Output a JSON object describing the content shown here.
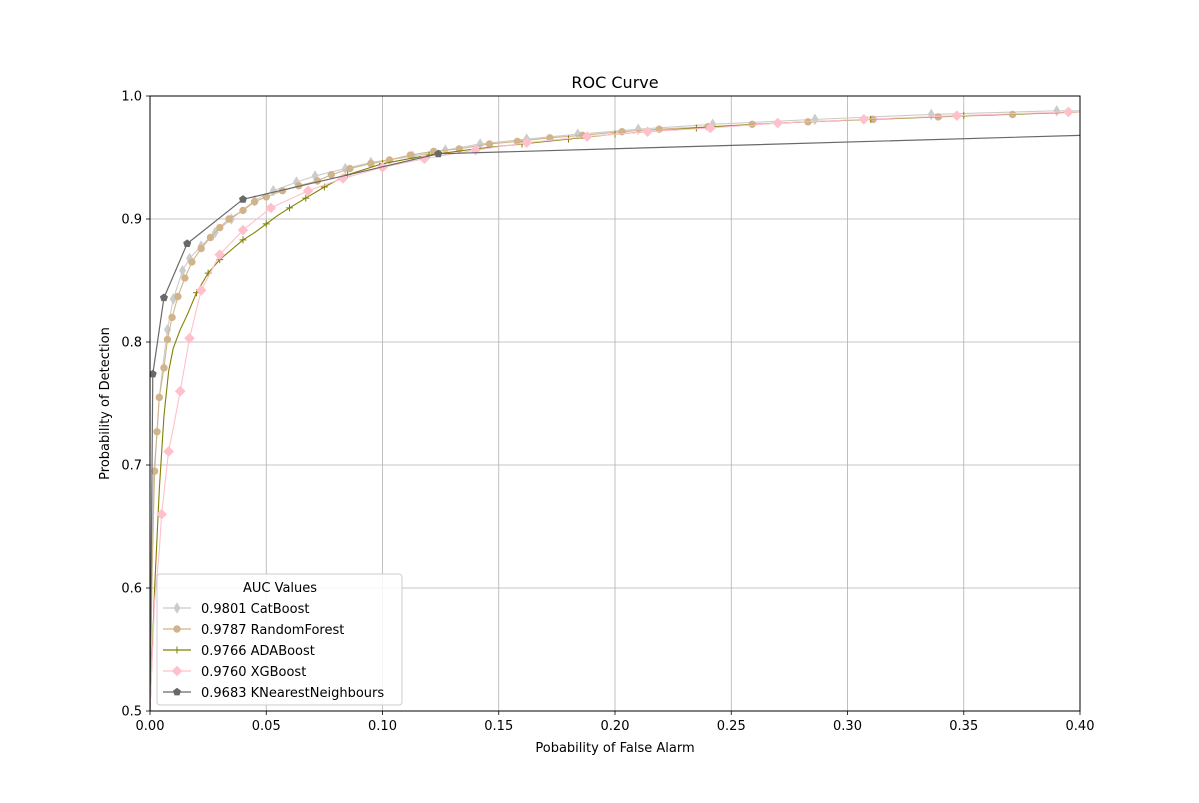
{
  "chart_data": {
    "type": "line",
    "title": "ROC Curve",
    "xlabel": "Pobability of False Alarm",
    "ylabel": "Probability of Detection",
    "xlim": [
      0.0,
      0.4
    ],
    "ylim": [
      0.5,
      1.0
    ],
    "x_ticks": [
      "0.00",
      "0.05",
      "0.10",
      "0.15",
      "0.20",
      "0.25",
      "0.30",
      "0.35",
      "0.40"
    ],
    "y_ticks": [
      "0.5",
      "0.6",
      "0.7",
      "0.8",
      "0.9",
      "1.0"
    ],
    "grid": true,
    "legend": {
      "title": "AUC Values",
      "placement": "lower-left"
    },
    "series": [
      {
        "name": "0.9801 CatBoost",
        "color": "#cccccc",
        "marker": "thin-diamond",
        "points": [
          [
            0,
            0.5
          ],
          [
            0.0008,
            0.62
          ],
          [
            0.0015,
            0.69
          ],
          [
            0.003,
            0.725
          ],
          [
            0.004,
            0.755
          ],
          [
            0.0055,
            0.78
          ],
          [
            0.0075,
            0.81
          ],
          [
            0.01,
            0.835
          ],
          [
            0.014,
            0.858
          ],
          [
            0.017,
            0.868
          ],
          [
            0.022,
            0.878
          ],
          [
            0.028,
            0.889
          ],
          [
            0.035,
            0.9
          ],
          [
            0.045,
            0.915
          ],
          [
            0.053,
            0.923
          ],
          [
            0.063,
            0.93
          ],
          [
            0.071,
            0.935
          ],
          [
            0.084,
            0.941
          ],
          [
            0.095,
            0.946
          ],
          [
            0.113,
            0.951
          ],
          [
            0.127,
            0.956
          ],
          [
            0.142,
            0.961
          ],
          [
            0.162,
            0.965
          ],
          [
            0.184,
            0.969
          ],
          [
            0.21,
            0.973
          ],
          [
            0.242,
            0.977
          ],
          [
            0.286,
            0.981
          ],
          [
            0.336,
            0.985
          ],
          [
            0.39,
            0.988
          ],
          [
            0.4,
            0.988
          ]
        ],
        "marker_x": [
          0.0075,
          0.01,
          0.014,
          0.017,
          0.022,
          0.028,
          0.035,
          0.045,
          0.053,
          0.063,
          0.071,
          0.084,
          0.095,
          0.113,
          0.127,
          0.142,
          0.162,
          0.184,
          0.21,
          0.242,
          0.286,
          0.336,
          0.39
        ]
      },
      {
        "name": "0.9787 RandomForest",
        "color": "#d2b48c",
        "marker": "circle",
        "points": [
          [
            0,
            0.5
          ],
          [
            0.0008,
            0.6
          ],
          [
            0.0015,
            0.66
          ],
          [
            0.002,
            0.695
          ],
          [
            0.003,
            0.727
          ],
          [
            0.004,
            0.755
          ],
          [
            0.006,
            0.779
          ],
          [
            0.0075,
            0.802
          ],
          [
            0.0095,
            0.82
          ],
          [
            0.012,
            0.837
          ],
          [
            0.015,
            0.852
          ],
          [
            0.018,
            0.865
          ],
          [
            0.022,
            0.876
          ],
          [
            0.026,
            0.885
          ],
          [
            0.03,
            0.893
          ],
          [
            0.034,
            0.9
          ],
          [
            0.04,
            0.907
          ],
          [
            0.045,
            0.914
          ],
          [
            0.05,
            0.918
          ],
          [
            0.057,
            0.923
          ],
          [
            0.064,
            0.927
          ],
          [
            0.072,
            0.931
          ],
          [
            0.078,
            0.936
          ],
          [
            0.086,
            0.941
          ],
          [
            0.095,
            0.945
          ],
          [
            0.103,
            0.948
          ],
          [
            0.112,
            0.952
          ],
          [
            0.122,
            0.955
          ],
          [
            0.133,
            0.957
          ],
          [
            0.146,
            0.961
          ],
          [
            0.158,
            0.963
          ],
          [
            0.172,
            0.966
          ],
          [
            0.186,
            0.968
          ],
          [
            0.203,
            0.971
          ],
          [
            0.219,
            0.973
          ],
          [
            0.24,
            0.975
          ],
          [
            0.259,
            0.977
          ],
          [
            0.283,
            0.979
          ],
          [
            0.311,
            0.981
          ],
          [
            0.339,
            0.983
          ],
          [
            0.371,
            0.985
          ],
          [
            0.4,
            0.987
          ]
        ],
        "marker_x": [
          0.002,
          0.003,
          0.004,
          0.006,
          0.0075,
          0.0095,
          0.012,
          0.015,
          0.018,
          0.022,
          0.026,
          0.03,
          0.034,
          0.04,
          0.045,
          0.05,
          0.057,
          0.064,
          0.072,
          0.078,
          0.086,
          0.095,
          0.103,
          0.112,
          0.122,
          0.133,
          0.146,
          0.158,
          0.172,
          0.186,
          0.203,
          0.219,
          0.24,
          0.259,
          0.283,
          0.311,
          0.339,
          0.371
        ]
      },
      {
        "name": "0.9766 ADABoost",
        "color": "#808000",
        "marker": "plus",
        "points": [
          [
            0,
            0.5
          ],
          [
            0.002,
            0.6
          ],
          [
            0.004,
            0.68
          ],
          [
            0.006,
            0.74
          ],
          [
            0.008,
            0.776
          ],
          [
            0.01,
            0.795
          ],
          [
            0.013,
            0.81
          ],
          [
            0.016,
            0.822
          ],
          [
            0.02,
            0.84
          ],
          [
            0.025,
            0.856
          ],
          [
            0.03,
            0.867
          ],
          [
            0.035,
            0.875
          ],
          [
            0.04,
            0.883
          ],
          [
            0.045,
            0.889
          ],
          [
            0.05,
            0.896
          ],
          [
            0.055,
            0.903
          ],
          [
            0.06,
            0.909
          ],
          [
            0.067,
            0.917
          ],
          [
            0.075,
            0.926
          ],
          [
            0.085,
            0.936
          ],
          [
            0.1,
            0.945
          ],
          [
            0.12,
            0.952
          ],
          [
            0.14,
            0.957
          ],
          [
            0.16,
            0.961
          ],
          [
            0.18,
            0.965
          ],
          [
            0.2,
            0.969
          ],
          [
            0.235,
            0.974
          ],
          [
            0.27,
            0.978
          ],
          [
            0.31,
            0.981
          ],
          [
            0.35,
            0.984
          ],
          [
            0.4,
            0.987
          ]
        ],
        "marker_x": [
          0.02,
          0.025,
          0.03,
          0.04,
          0.05,
          0.06,
          0.067,
          0.075,
          0.085,
          0.1,
          0.12,
          0.14,
          0.16,
          0.18,
          0.2,
          0.235,
          0.27,
          0.31,
          0.35
        ]
      },
      {
        "name": "0.9760 XGBoost",
        "color": "#ffc0cb",
        "marker": "diamond",
        "points": [
          [
            0,
            0.5
          ],
          [
            0.002,
            0.59
          ],
          [
            0.004,
            0.63
          ],
          [
            0.005,
            0.66
          ],
          [
            0.008,
            0.711
          ],
          [
            0.01,
            0.73
          ],
          [
            0.013,
            0.76
          ],
          [
            0.017,
            0.803
          ],
          [
            0.022,
            0.842
          ],
          [
            0.03,
            0.871
          ],
          [
            0.04,
            0.891
          ],
          [
            0.052,
            0.909
          ],
          [
            0.068,
            0.923
          ],
          [
            0.083,
            0.933
          ],
          [
            0.1,
            0.942
          ],
          [
            0.118,
            0.949
          ],
          [
            0.14,
            0.956
          ],
          [
            0.162,
            0.962
          ],
          [
            0.188,
            0.967
          ],
          [
            0.214,
            0.971
          ],
          [
            0.241,
            0.974
          ],
          [
            0.27,
            0.978
          ],
          [
            0.307,
            0.981
          ],
          [
            0.347,
            0.984
          ],
          [
            0.395,
            0.987
          ],
          [
            0.4,
            0.987
          ]
        ],
        "marker_x": [
          0.005,
          0.008,
          0.013,
          0.017,
          0.022,
          0.03,
          0.04,
          0.052,
          0.068,
          0.083,
          0.1,
          0.118,
          0.14,
          0.162,
          0.188,
          0.214,
          0.241,
          0.27,
          0.307,
          0.347,
          0.395
        ]
      },
      {
        "name": "0.9683 KNearestNeighbours",
        "color": "#696969",
        "marker": "pentagon",
        "points": [
          [
            0,
            0.5
          ],
          [
            0.0012,
            0.774
          ],
          [
            0.006,
            0.836
          ],
          [
            0.016,
            0.88
          ],
          [
            0.04,
            0.916
          ],
          [
            0.124,
            0.953
          ],
          [
            0.4,
            0.968
          ]
        ],
        "marker_x": [
          0.0012,
          0.006,
          0.016,
          0.04,
          0.124
        ]
      }
    ]
  }
}
